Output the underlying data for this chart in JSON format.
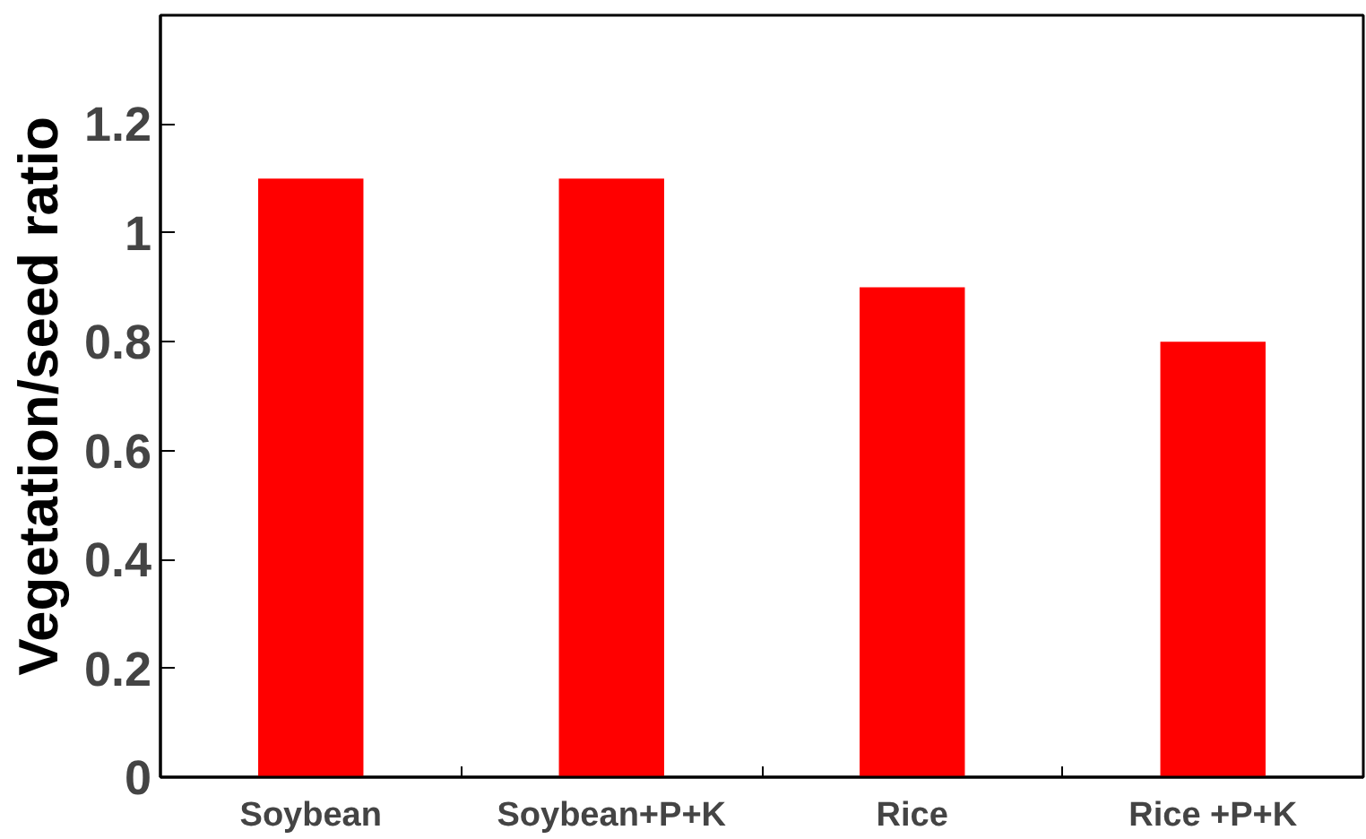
{
  "chart_data": {
    "type": "bar",
    "ylabel": "Vegetation/seed ratio",
    "categories": [
      "Soybean",
      "Soybean+P+K",
      "Rice",
      "Rice +P+K"
    ],
    "values": [
      1.1,
      1.1,
      0.9,
      0.8
    ],
    "color": "#ff0000",
    "ylim": [
      0,
      1.4
    ],
    "yticks": [
      0,
      {
        "value": 0.2,
        "label": "0.2"
      },
      {
        "value": 0.4,
        "label": "0.4"
      },
      {
        "value": 0.6,
        "label": "0.6"
      },
      {
        "value": 0.8,
        "label": "0.8"
      },
      1,
      {
        "value": 1.2,
        "label": "1.2"
      }
    ],
    "grid": false
  }
}
